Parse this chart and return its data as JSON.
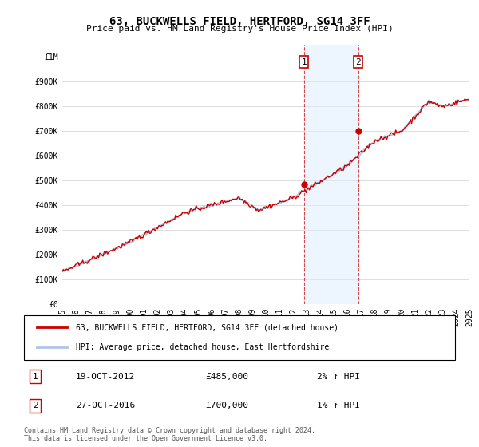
{
  "title": "63, BUCKWELLS FIELD, HERTFORD, SG14 3FF",
  "subtitle": "Price paid vs. HM Land Registry's House Price Index (HPI)",
  "ylabel_ticks": [
    "£0",
    "£100K",
    "£200K",
    "£300K",
    "£400K",
    "£500K",
    "£600K",
    "£700K",
    "£800K",
    "£900K",
    "£1M"
  ],
  "ytick_vals": [
    0,
    100000,
    200000,
    300000,
    400000,
    500000,
    600000,
    700000,
    800000,
    900000,
    1000000
  ],
  "ylim": [
    0,
    1050000
  ],
  "x_start_year": 1995,
  "x_end_year": 2025,
  "sale1_year": 2012.8,
  "sale1_price": 485000,
  "sale1_label": "1",
  "sale1_date": "19-OCT-2012",
  "sale1_hpi": "2%",
  "sale2_year": 2016.8,
  "sale2_price": 700000,
  "sale2_label": "2",
  "sale2_date": "27-OCT-2016",
  "sale2_hpi": "1%",
  "hpi_color": "#aec6e8",
  "price_color": "#cc0000",
  "shade_color": "#ddeeff",
  "legend_label1": "63, BUCKWELLS FIELD, HERTFORD, SG14 3FF (detached house)",
  "legend_label2": "HPI: Average price, detached house, East Hertfordshire",
  "annotation1_date": "19-OCT-2012",
  "annotation1_price": "£485,000",
  "annotation1_hpi": "2% ↑ HPI",
  "annotation2_date": "27-OCT-2016",
  "annotation2_price": "£700,000",
  "annotation2_hpi": "1% ↑ HPI",
  "footnote": "Contains HM Land Registry data © Crown copyright and database right 2024.\nThis data is licensed under the Open Government Licence v3.0."
}
